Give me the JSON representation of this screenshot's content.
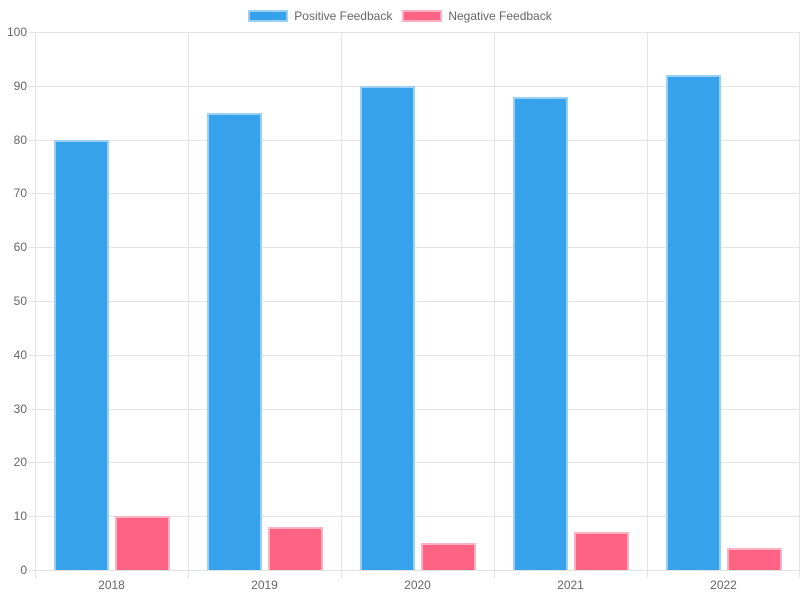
{
  "chart_data": {
    "type": "bar",
    "categories": [
      "2018",
      "2019",
      "2020",
      "2021",
      "2022"
    ],
    "series": [
      {
        "name": "Positive Feedback",
        "values": [
          80,
          85,
          90,
          88,
          92
        ],
        "color": "#36A2EB",
        "border_color": "#9BD0F5"
      },
      {
        "name": "Negative Feedback",
        "values": [
          10,
          8,
          5,
          7,
          4
        ],
        "color": "#FF6384",
        "border_color": "#FFB1C1"
      }
    ],
    "xlabel": "",
    "ylabel": "",
    "ylim": [
      0,
      100
    ],
    "ytick_step": 10,
    "yticks": [
      "0",
      "10",
      "20",
      "30",
      "40",
      "50",
      "60",
      "70",
      "80",
      "90",
      "100"
    ],
    "grid": true,
    "grid_color": "#E3E3E3",
    "text_color": "#666666",
    "background_color": "#FFFFFF",
    "legend_position": "top"
  }
}
